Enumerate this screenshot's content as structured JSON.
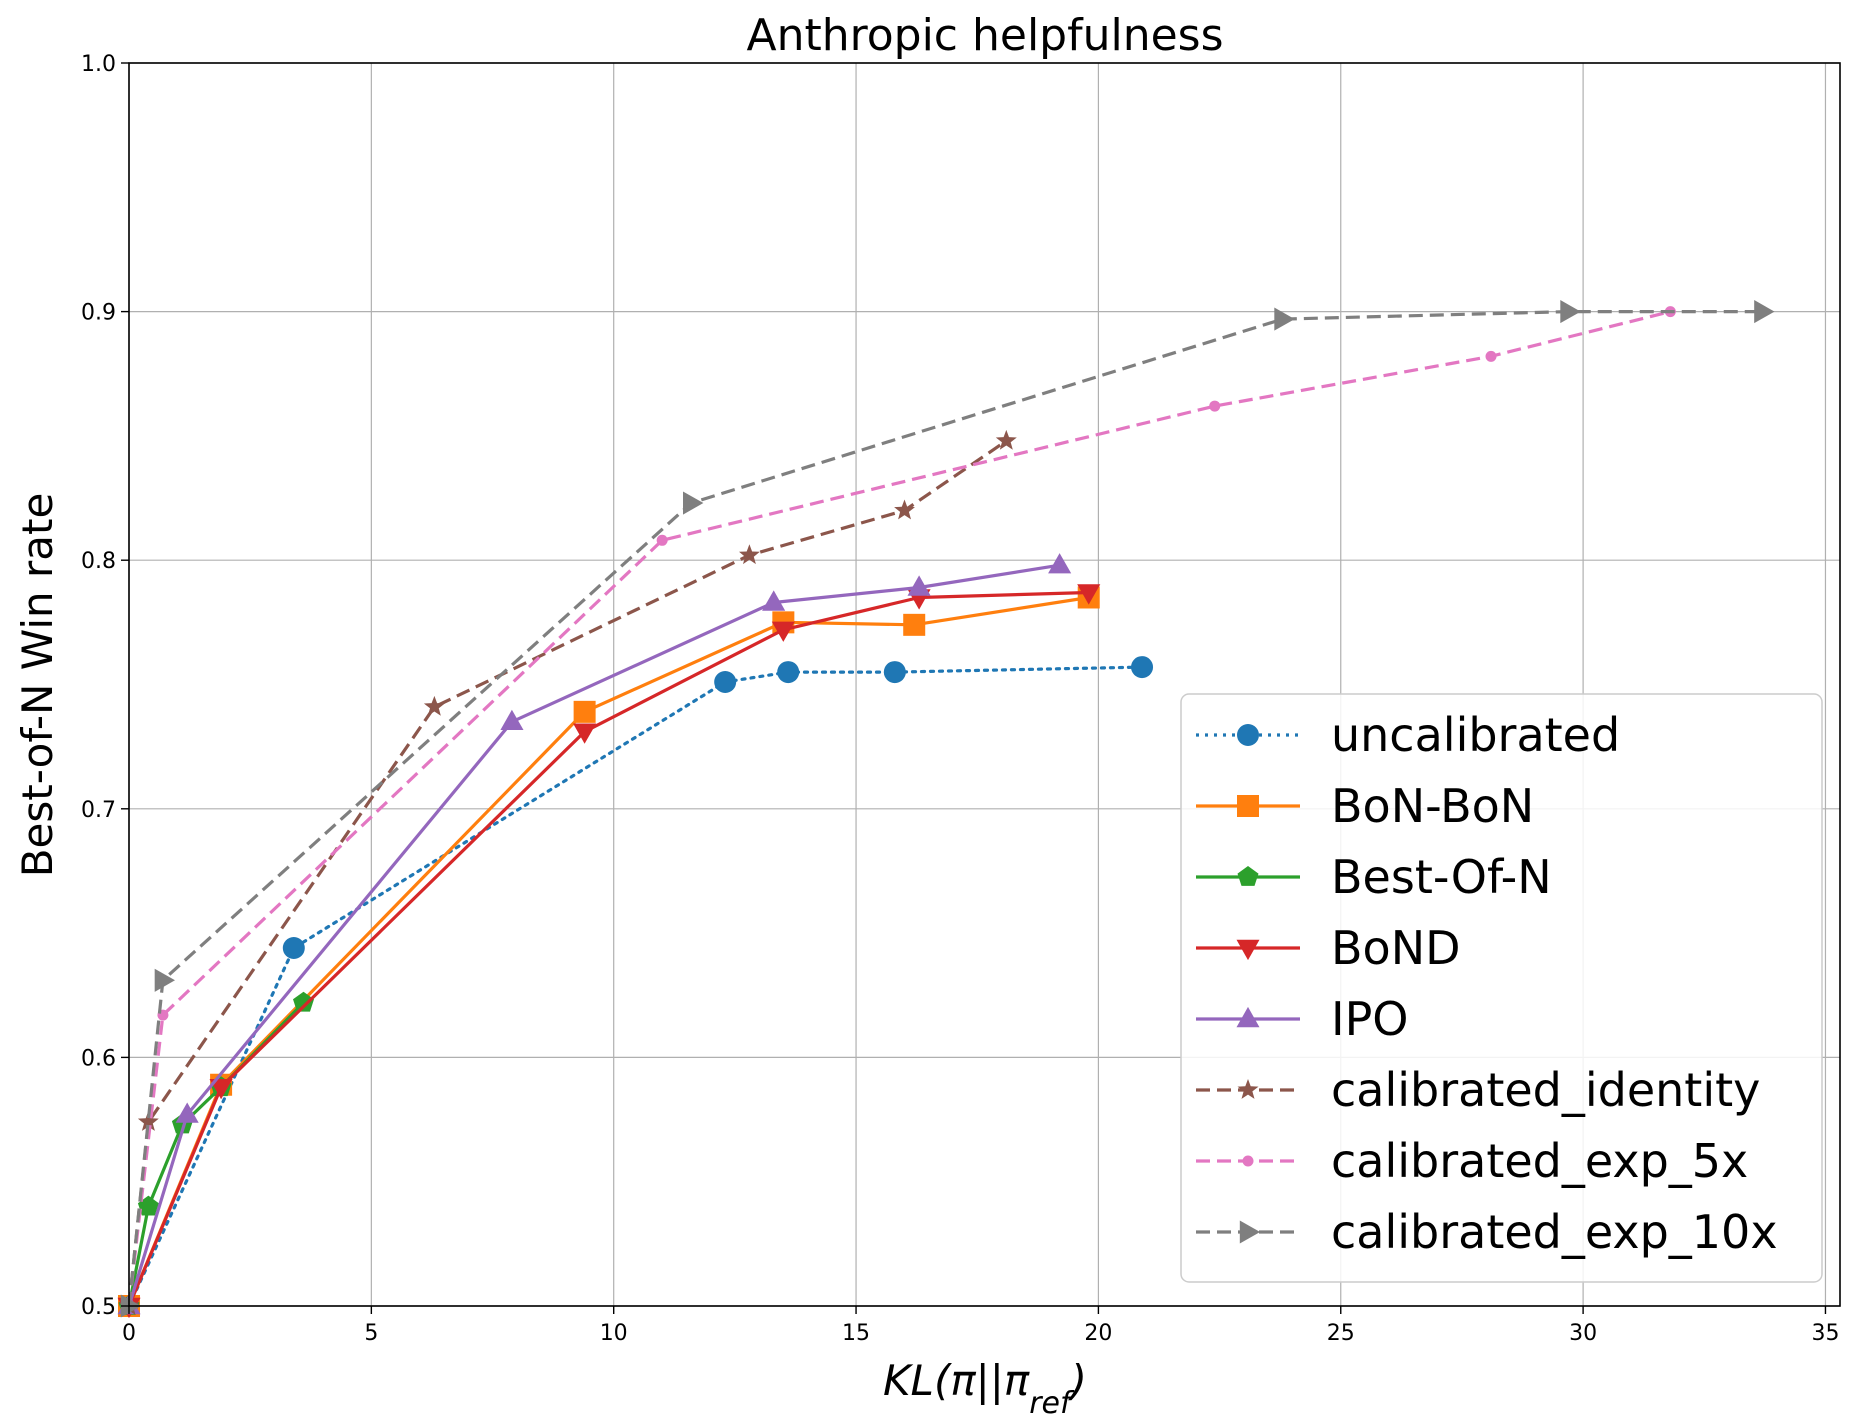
{
  "chart_data": {
    "type": "line",
    "title": "Anthropic helpfulness",
    "xlabel": {
      "main": "KL(π||π",
      "sub": "ref",
      "close": ")"
    },
    "ylabel": "Best-of-N Win rate",
    "xlim": [
      0,
      35.3
    ],
    "ylim": [
      0.5,
      1.0
    ],
    "xticks": [
      0,
      5,
      10,
      15,
      20,
      25,
      30,
      35
    ],
    "yticks": [
      0.5,
      0.6,
      0.7,
      0.8,
      0.9,
      1.0
    ],
    "xtick_labels": [
      "0",
      "5",
      "10",
      "15",
      "20",
      "25",
      "30",
      "35"
    ],
    "ytick_labels": [
      "0.5",
      "0.6",
      "0.7",
      "0.8",
      "0.9",
      "1.0"
    ],
    "grid": true,
    "legend_position": "lower-right",
    "series": [
      {
        "name": "uncalibrated",
        "color": "#1f77b4",
        "dash": "dotted",
        "marker": "circle",
        "points": [
          [
            0,
            0.5
          ],
          [
            3.4,
            0.644
          ],
          [
            12.3,
            0.751
          ],
          [
            13.6,
            0.755
          ],
          [
            15.8,
            0.755
          ],
          [
            20.9,
            0.757
          ]
        ]
      },
      {
        "name": "BoN-BoN",
        "color": "#ff7f0e",
        "dash": "solid",
        "marker": "square",
        "points": [
          [
            0,
            0.5
          ],
          [
            1.9,
            0.589
          ],
          [
            9.4,
            0.739
          ],
          [
            13.5,
            0.775
          ],
          [
            16.2,
            0.774
          ],
          [
            19.8,
            0.785
          ]
        ]
      },
      {
        "name": "Best-Of-N",
        "color": "#2ca02c",
        "dash": "solid",
        "marker": "pentagon",
        "points": [
          [
            0,
            0.5
          ],
          [
            0.4,
            0.54
          ],
          [
            1.1,
            0.573
          ],
          [
            1.9,
            0.588
          ],
          [
            3.6,
            0.622
          ]
        ]
      },
      {
        "name": "BoND",
        "color": "#d62728",
        "dash": "solid",
        "marker": "triangle-down",
        "points": [
          [
            0,
            0.5
          ],
          [
            1.9,
            0.588
          ],
          [
            9.4,
            0.731
          ],
          [
            13.5,
            0.772
          ],
          [
            16.3,
            0.785
          ],
          [
            19.8,
            0.787
          ]
        ]
      },
      {
        "name": "IPO",
        "color": "#9467bd",
        "dash": "solid",
        "marker": "triangle-up",
        "points": [
          [
            0,
            0.5
          ],
          [
            1.2,
            0.577
          ],
          [
            7.9,
            0.735
          ],
          [
            13.3,
            0.783
          ],
          [
            16.3,
            0.789
          ],
          [
            19.2,
            0.798
          ]
        ]
      },
      {
        "name": "calibrated_identity",
        "color": "#8c564b",
        "dash": "dashed",
        "marker": "star",
        "points": [
          [
            0,
            0.5
          ],
          [
            0.4,
            0.574
          ],
          [
            6.3,
            0.741
          ],
          [
            12.8,
            0.802
          ],
          [
            16.0,
            0.82
          ],
          [
            18.1,
            0.848
          ]
        ]
      },
      {
        "name": "calibrated_exp_5x",
        "color": "#e377c2",
        "dash": "dashed",
        "marker": "dot",
        "points": [
          [
            0,
            0.5
          ],
          [
            0.7,
            0.617
          ],
          [
            11.0,
            0.808
          ],
          [
            22.4,
            0.862
          ],
          [
            28.1,
            0.882
          ],
          [
            31.8,
            0.9
          ]
        ]
      },
      {
        "name": "calibrated_exp_10x",
        "color": "#7f7f7f",
        "dash": "dashed",
        "marker": "triangle-right",
        "points": [
          [
            0,
            0.5
          ],
          [
            0.7,
            0.631
          ],
          [
            11.6,
            0.823
          ],
          [
            23.8,
            0.897
          ],
          [
            29.7,
            0.9
          ],
          [
            33.7,
            0.9
          ]
        ]
      }
    ]
  }
}
